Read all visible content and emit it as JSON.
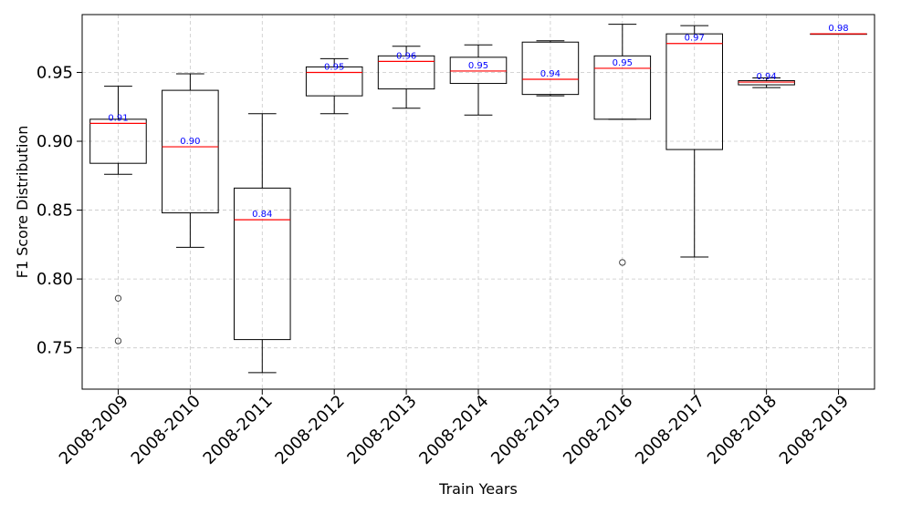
{
  "chart_data": {
    "type": "box",
    "title": "",
    "xlabel": "Train Years",
    "ylabel": "F1 Score Distribution",
    "ylim": [
      0.72,
      0.992
    ],
    "yticks": [
      0.75,
      0.8,
      0.85,
      0.9,
      0.95
    ],
    "ytick_labels": [
      "0.75",
      "0.80",
      "0.85",
      "0.90",
      "0.95"
    ],
    "grid": true,
    "colors": {
      "box": "#000000",
      "median": "#ff0000",
      "median_label": "#0000ff",
      "grid": "#c8c8c8"
    },
    "categories": [
      "2008-2009",
      "2008-2010",
      "2008-2011",
      "2008-2012",
      "2008-2013",
      "2008-2014",
      "2008-2015",
      "2008-2016",
      "2008-2017",
      "2008-2018",
      "2008-2019"
    ],
    "boxes": [
      {
        "whisker_low": 0.876,
        "q1": 0.884,
        "median": 0.913,
        "q3": 0.916,
        "whisker_high": 0.94,
        "outliers": [
          0.786,
          0.755
        ],
        "median_label": "0.91"
      },
      {
        "whisker_low": 0.823,
        "q1": 0.848,
        "median": 0.896,
        "q3": 0.937,
        "whisker_high": 0.949,
        "outliers": [],
        "median_label": "0.90"
      },
      {
        "whisker_low": 0.732,
        "q1": 0.756,
        "median": 0.843,
        "q3": 0.866,
        "whisker_high": 0.92,
        "outliers": [],
        "median_label": "0.84"
      },
      {
        "whisker_low": 0.92,
        "q1": 0.933,
        "median": 0.95,
        "q3": 0.954,
        "whisker_high": 0.96,
        "outliers": [],
        "median_label": "0.95"
      },
      {
        "whisker_low": 0.924,
        "q1": 0.938,
        "median": 0.958,
        "q3": 0.962,
        "whisker_high": 0.969,
        "outliers": [],
        "median_label": "0.96"
      },
      {
        "whisker_low": 0.919,
        "q1": 0.942,
        "median": 0.951,
        "q3": 0.961,
        "whisker_high": 0.97,
        "outliers": [],
        "median_label": "0.95"
      },
      {
        "whisker_low": 0.933,
        "q1": 0.934,
        "median": 0.945,
        "q3": 0.972,
        "whisker_high": 0.973,
        "outliers": [],
        "median_label": "0.94"
      },
      {
        "whisker_low": 0.916,
        "q1": 0.916,
        "median": 0.953,
        "q3": 0.962,
        "whisker_high": 0.985,
        "outliers": [
          0.812
        ],
        "median_label": "0.95"
      },
      {
        "whisker_low": 0.816,
        "q1": 0.894,
        "median": 0.971,
        "q3": 0.978,
        "whisker_high": 0.984,
        "outliers": [],
        "median_label": "0.97"
      },
      {
        "whisker_low": 0.939,
        "q1": 0.941,
        "median": 0.943,
        "q3": 0.944,
        "whisker_high": 0.946,
        "outliers": [],
        "median_label": "0.94"
      },
      {
        "whisker_low": 0.978,
        "q1": 0.978,
        "median": 0.978,
        "q3": 0.978,
        "whisker_high": 0.978,
        "outliers": [],
        "median_label": "0.98"
      }
    ]
  }
}
